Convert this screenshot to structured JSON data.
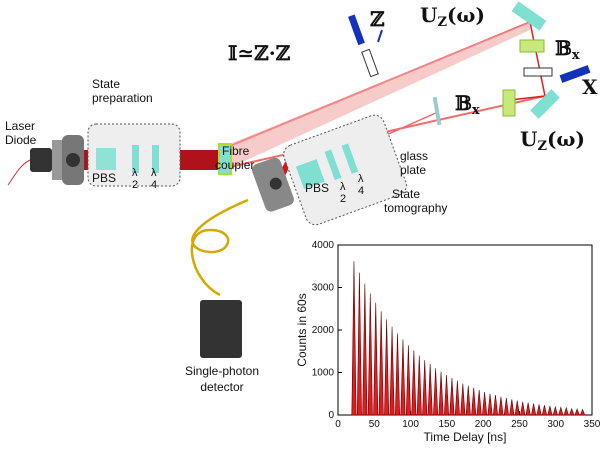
{
  "labels": {
    "laser": [
      "Laser",
      "Diode"
    ],
    "state_preparation": [
      "State",
      "preparation"
    ],
    "prep_pbs": "PBS",
    "prep_half": [
      "λ",
      "2"
    ],
    "prep_quarter": [
      "λ",
      "4"
    ],
    "identity": "𝕀≃ℤ·ℤ",
    "z": "ℤ",
    "uz_top": {
      "base": "U",
      "sub": "Z",
      "arg": "(ω)"
    },
    "bx_top": {
      "base": "𝔹",
      "sub": "x"
    },
    "x": "X",
    "bx_bottom": {
      "base": "𝔹",
      "sub": "x"
    },
    "uz_bottom": {
      "base": "U",
      "sub": "Z",
      "arg": "(ω)"
    },
    "glass_plate": [
      "glass",
      "plate"
    ],
    "fibre_coupler": [
      "Fibre",
      "coupler"
    ],
    "tomo_pbs": "PBS",
    "tomo_half": [
      "λ",
      "2"
    ],
    "tomo_quarter": [
      "λ",
      "4"
    ],
    "state_tomography": [
      "State",
      "tomography"
    ],
    "detector": [
      "Single-photon",
      "detector"
    ]
  },
  "chart_data": {
    "type": "bar",
    "x_label": "Time Delay [ns]",
    "y_label": "Counts in 60s",
    "x": [
      22,
      29.5,
      37,
      44.5,
      52,
      59.5,
      67,
      74.5,
      82,
      89.5,
      97,
      104.5,
      112,
      119.5,
      127,
      134.5,
      142,
      149.5,
      157,
      164.5,
      172,
      179.5,
      187,
      194.5,
      202,
      209.5,
      217,
      224.5,
      232,
      239.5,
      247,
      254.5,
      262,
      269.5,
      277,
      284.5,
      292,
      299.5,
      307,
      314.5,
      322,
      329.5,
      337
    ],
    "values": [
      3620,
      3350,
      3090,
      2860,
      2640,
      2440,
      2250,
      2080,
      1920,
      1780,
      1640,
      1520,
      1400,
      1290,
      1200,
      1100,
      1020,
      940,
      870,
      810,
      740,
      690,
      640,
      590,
      540,
      500,
      470,
      430,
      400,
      370,
      340,
      310,
      290,
      270,
      250,
      230,
      210,
      190,
      180,
      170,
      150,
      140,
      130
    ],
    "color": "#e41a1c",
    "xlim": [
      0,
      350
    ],
    "xticks": [
      0,
      50,
      100,
      150,
      200,
      250,
      300,
      350
    ],
    "ylim": [
      0,
      4000
    ],
    "yticks": [
      0,
      1000,
      2000,
      3000,
      4000
    ]
  }
}
